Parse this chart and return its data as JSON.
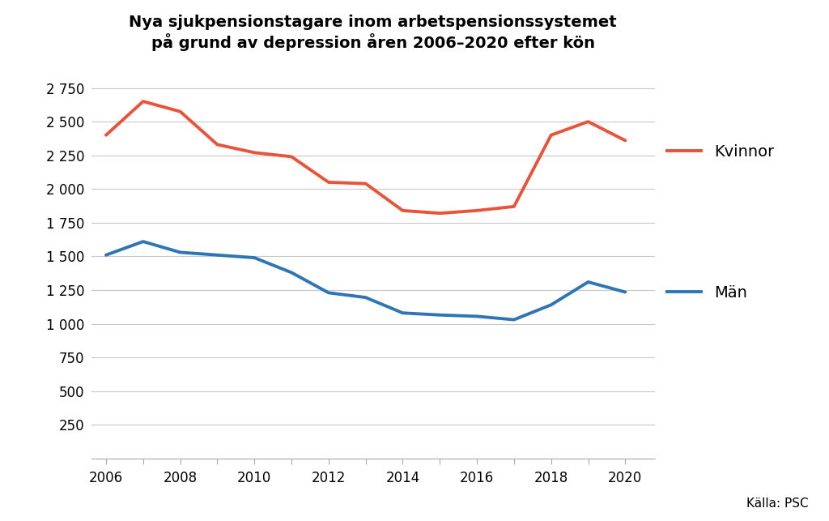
{
  "title_line1": "Nya sjukpensionstagare inom arbetspensionssystemet",
  "title_line2": "på grund av depression åren 2006–2020 efter kön",
  "years": [
    2006,
    2007,
    2008,
    2009,
    2010,
    2011,
    2012,
    2013,
    2014,
    2015,
    2016,
    2017,
    2018,
    2019,
    2020
  ],
  "kvinnor": [
    2400,
    2650,
    2575,
    2330,
    2270,
    2240,
    2050,
    2040,
    1840,
    1820,
    1840,
    1870,
    2400,
    2500,
    2360
  ],
  "man": [
    1510,
    1610,
    1530,
    1510,
    1490,
    1380,
    1230,
    1195,
    1080,
    1065,
    1055,
    1030,
    1140,
    1310,
    1235
  ],
  "kvinnor_color": "#e8533a",
  "man_color": "#2e75b6",
  "line_width": 2.8,
  "legend_kvinnor": "Kvinnor",
  "legend_man": "Män",
  "ylim": [
    0,
    2900
  ],
  "yticks": [
    0,
    250,
    500,
    750,
    1000,
    1250,
    1500,
    1750,
    2000,
    2250,
    2500,
    2750
  ],
  "ytick_labels": [
    "",
    "250",
    "500",
    "750",
    "1 000",
    "1 250",
    "1 500",
    "1 750",
    "2 000",
    "2 250",
    "2 500",
    "2 750"
  ],
  "xticks": [
    2006,
    2007,
    2008,
    2009,
    2010,
    2011,
    2012,
    2013,
    2014,
    2015,
    2016,
    2017,
    2018,
    2019,
    2020
  ],
  "xtick_labels": [
    "2006",
    "",
    "2008",
    "",
    "2010",
    "",
    "2012",
    "",
    "2014",
    "",
    "2016",
    "",
    "2018",
    "",
    "2020"
  ],
  "source_text": "Källa: PSC",
  "background_color": "#ffffff",
  "title_fontsize": 14,
  "tick_fontsize": 12,
  "legend_fontsize": 14,
  "grid_color": "#c8c8c8",
  "grid_linewidth": 0.8,
  "xlim_left": 2005.6,
  "xlim_right": 2020.8
}
